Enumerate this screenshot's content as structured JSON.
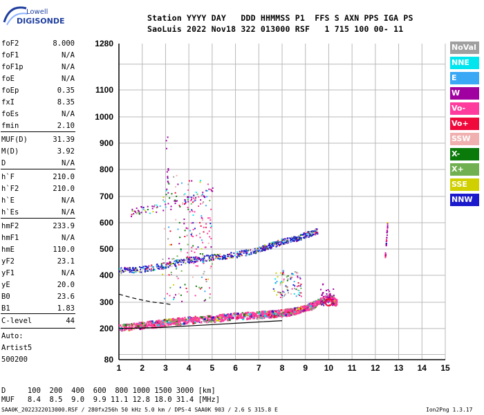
{
  "logo": {
    "brand_top": "Lowell",
    "brand_bottom": "DIGISONDE"
  },
  "header": {
    "line1": "Station YYYY DAY   DDD HHMMSS P1  FFS S AXN PPS IGA PS",
    "line2": "SaoLuis 2022 Nov18 322 013000 RSF   1 715 100 00- 11"
  },
  "params": [
    {
      "label": "foF2",
      "value": "8.000"
    },
    {
      "label": "foF1",
      "value": "N/A"
    },
    {
      "label": "foF1p",
      "value": "N/A"
    },
    {
      "label": "foE",
      "value": "N/A"
    },
    {
      "label": "foEp",
      "value": "0.35"
    },
    {
      "label": "fxI",
      "value": "8.35"
    },
    {
      "label": "foEs",
      "value": "N/A"
    },
    {
      "label": "fmin",
      "value": "2.10"
    },
    {
      "label": "MUF(D)",
      "value": "31.39"
    },
    {
      "label": "M(D)",
      "value": "3.92"
    },
    {
      "label": "D",
      "value": "N/A"
    },
    {
      "label": "h`F",
      "value": "210.0"
    },
    {
      "label": "h`F2",
      "value": "210.0"
    },
    {
      "label": "h`E",
      "value": "N/A"
    },
    {
      "label": "h`Es",
      "value": "N/A"
    },
    {
      "label": "hmF2",
      "value": "233.9"
    },
    {
      "label": "hmF1",
      "value": "N/A"
    },
    {
      "label": "hmE",
      "value": "110.0"
    },
    {
      "label": "yF2",
      "value": "23.1"
    },
    {
      "label": "yF1",
      "value": "N/A"
    },
    {
      "label": "yE",
      "value": "20.0"
    },
    {
      "label": "B0",
      "value": "23.6"
    },
    {
      "label": "B1",
      "value": "1.83"
    },
    {
      "label": "C-level",
      "value": "44"
    }
  ],
  "notes": {
    "auto": "Auto:",
    "artist": "Artist5",
    "version": "500200"
  },
  "legend": [
    {
      "label": "NoVal",
      "color": "#a0a0a0"
    },
    {
      "label": "NNE",
      "color": "#00e5ee"
    },
    {
      "label": "E",
      "color": "#3aa8f5"
    },
    {
      "label": "W",
      "color": "#a000a0"
    },
    {
      "label": "Vo-",
      "color": "#ff3c9e"
    },
    {
      "label": "Vo+",
      "color": "#f00a3c"
    },
    {
      "label": "SSW",
      "color": "#f0b0b0"
    },
    {
      "label": "X-",
      "color": "#0a7a0a"
    },
    {
      "label": "X+",
      "color": "#70b050"
    },
    {
      "label": "SSE",
      "color": "#d0d000"
    },
    {
      "label": "NNW",
      "color": "#1a1acc"
    }
  ],
  "footer": {
    "d_row": "D     100  200  400  600  800 1000 1500 3000 [km]",
    "muf_row": "MUF   8.4  8.5  9.0  9.9 11.1 12.8 18.0 31.4 [MHz]",
    "file_info": "SAA0K_2022322013000.RSF / 280fx256h 50 kHz 5.0 km / DPS-4 SAA0K 903 / 2.6 S 315.8 E",
    "program": "Ion2Png 1.3.17"
  },
  "chart_data": {
    "type": "scatter",
    "x_ticks": [
      "1",
      "2",
      "3",
      "4",
      "5",
      "6",
      "7",
      "8",
      "9",
      "10",
      "11",
      "12",
      "13",
      "14",
      "15"
    ],
    "y_ticks": [
      "80",
      "200",
      "300",
      "400",
      "500",
      "600",
      "700",
      "800",
      "900",
      "1000",
      "1100",
      "1280"
    ],
    "xlim": [
      1,
      15
    ],
    "ylim": [
      80,
      1280
    ],
    "grid": true,
    "traces": [
      {
        "name": "F-trace",
        "color": "#ff3c9e",
        "x": [
          1.0,
          2.0,
          3.0,
          4.0,
          5.0,
          6.0,
          7.0,
          7.5,
          8.0,
          8.5,
          9.0,
          9.5,
          10.0,
          10.3
        ],
        "y": [
          205,
          215,
          225,
          235,
          240,
          250,
          255,
          258,
          262,
          268,
          280,
          300,
          320,
          300
        ]
      },
      {
        "name": "2F-trace",
        "color": "#1a1acc",
        "x": [
          1.0,
          2.0,
          3.0,
          4.0,
          5.0,
          6.0,
          7.0,
          7.5,
          8.0,
          8.5,
          9.0,
          9.5
        ],
        "y": [
          420,
          425,
          440,
          460,
          470,
          480,
          500,
          515,
          530,
          540,
          555,
          570
        ]
      },
      {
        "name": "3F-trace",
        "color": "#a000a0",
        "x": [
          1.5,
          2.0,
          3.0,
          4.0,
          5.0
        ],
        "y": [
          640,
          650,
          660,
          690,
          720
        ]
      },
      {
        "name": "spur",
        "color": "#a000a0",
        "x": [
          12.4,
          12.45,
          12.5
        ],
        "y": [
          470,
          530,
          600
        ]
      }
    ],
    "profile": {
      "x": [
        1.0,
        2.0,
        3.0,
        4.0,
        5.0,
        6.0,
        7.0,
        8.0
      ],
      "y": [
        200,
        202,
        205,
        210,
        215,
        220,
        225,
        230
      ]
    },
    "profile_dashed": {
      "x": [
        1.0,
        1.5,
        2.0,
        2.5,
        3.0,
        3.3
      ],
      "y": [
        330,
        318,
        308,
        300,
        295,
        290
      ]
    },
    "marker": {
      "x": 10.0,
      "y": 300,
      "color": "#f00a3c"
    }
  }
}
